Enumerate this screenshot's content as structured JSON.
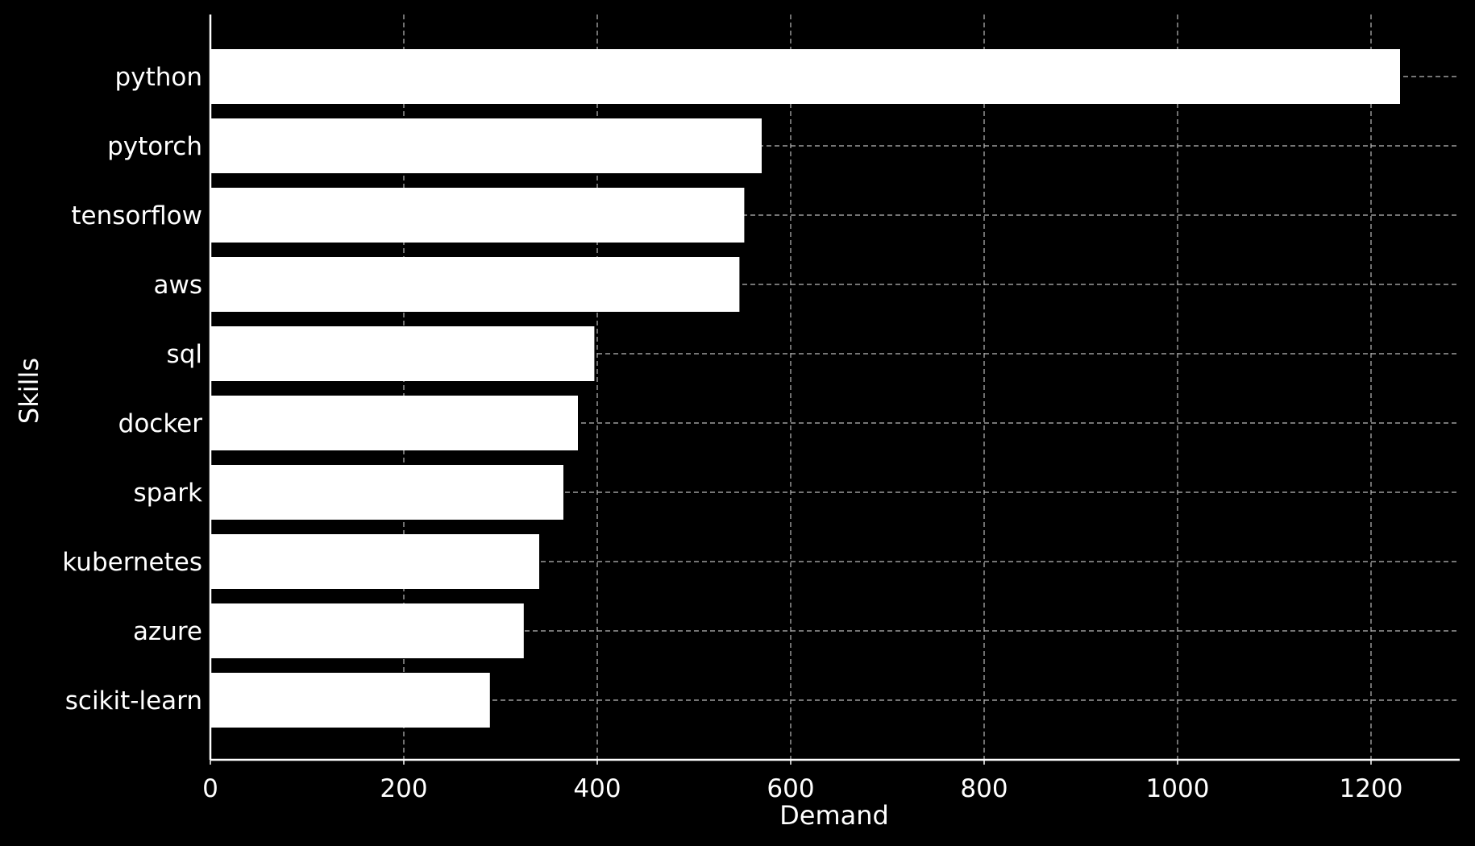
{
  "chart_data": {
    "type": "bar",
    "orientation": "horizontal",
    "title": "",
    "xlabel": "Demand",
    "ylabel": "Skills",
    "categories": [
      "python",
      "pytorch",
      "tensorflow",
      "aws",
      "sql",
      "docker",
      "spark",
      "kubernetes",
      "azure",
      "scikit-learn"
    ],
    "values": [
      1230,
      570,
      552,
      547,
      397,
      380,
      365,
      340,
      324,
      289
    ],
    "xlim": [
      0,
      1290
    ],
    "xticks": [
      0,
      200,
      400,
      600,
      800,
      1000,
      1200
    ],
    "xtick_labels": [
      "0",
      "200",
      "400",
      "600",
      "800",
      "1000",
      "1200"
    ],
    "grid": true,
    "grid_style": "dashed",
    "colors": {
      "background": "#000000",
      "bar": "#ffffff",
      "axis": "#ffffff",
      "grid": "#bbbbbb",
      "text": "#ffffff"
    }
  }
}
